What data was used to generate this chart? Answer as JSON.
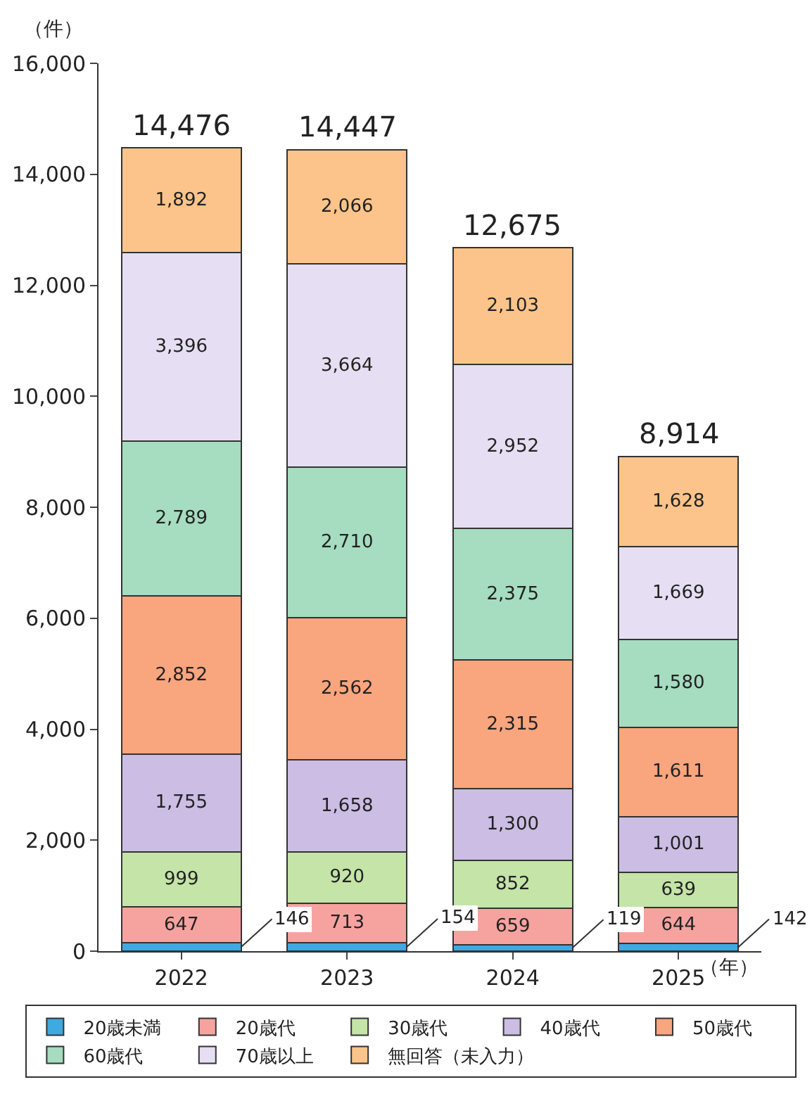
{
  "chart_data": {
    "type": "bar",
    "stacked": true,
    "ylabel": "（件）",
    "xlabel": "（年）",
    "categories": [
      "2022",
      "2023",
      "2024",
      "2025"
    ],
    "ylim": [
      0,
      16000
    ],
    "yticks": [
      0,
      {
        "value": 2000,
        "label": "2,000"
      },
      {
        "value": 4000,
        "label": "4,000"
      },
      {
        "value": 6000,
        "label": "6,000"
      },
      {
        "value": 8000,
        "label": "8,000"
      },
      {
        "value": 10000,
        "label": "10,000"
      },
      {
        "value": 12000,
        "label": "12,000"
      },
      {
        "value": 14000,
        "label": "14,000"
      },
      {
        "value": 16000,
        "label": "16,000"
      }
    ],
    "series": [
      {
        "name": "20歳未満",
        "color": "#3fa9e0",
        "values": [
          146,
          154,
          119,
          142
        ],
        "value_labels": [
          "146",
          "154",
          "119",
          "142"
        ]
      },
      {
        "name": "20歳代",
        "color": "#f6a3a0",
        "values": [
          647,
          713,
          659,
          644
        ],
        "value_labels": [
          "647",
          "713",
          "659",
          "644"
        ]
      },
      {
        "name": "30歳代",
        "color": "#c4e4a8",
        "values": [
          999,
          920,
          852,
          639
        ],
        "value_labels": [
          "999",
          "920",
          "852",
          "639"
        ]
      },
      {
        "name": "40歳代",
        "color": "#cbbde3",
        "values": [
          1755,
          1658,
          1300,
          1001
        ],
        "value_labels": [
          "1,755",
          "1,658",
          "1,300",
          "1,001"
        ]
      },
      {
        "name": "50歳代",
        "color": "#f9a57e",
        "values": [
          2852,
          2562,
          2315,
          1611
        ],
        "value_labels": [
          "2,852",
          "2,562",
          "2,315",
          "1,611"
        ]
      },
      {
        "name": "60歳代",
        "color": "#a6dcc0",
        "values": [
          2789,
          2710,
          2375,
          1580
        ],
        "value_labels": [
          "2,789",
          "2,710",
          "2,375",
          "1,580"
        ]
      },
      {
        "name": "70歳以上",
        "color": "#e6def2",
        "values": [
          3396,
          3664,
          2952,
          1669
        ],
        "value_labels": [
          "3,396",
          "3,664",
          "2,952",
          "1,669"
        ]
      },
      {
        "name": "無回答（未入力）",
        "color": "#fcc48a",
        "values": [
          1892,
          2066,
          2103,
          1628
        ],
        "value_labels": [
          "1,892",
          "2,066",
          "2,103",
          "1,628"
        ]
      }
    ],
    "totals": [
      "14,476",
      "14,447",
      "12,675",
      "8,914"
    ],
    "grid": false,
    "legend": "bottom"
  }
}
